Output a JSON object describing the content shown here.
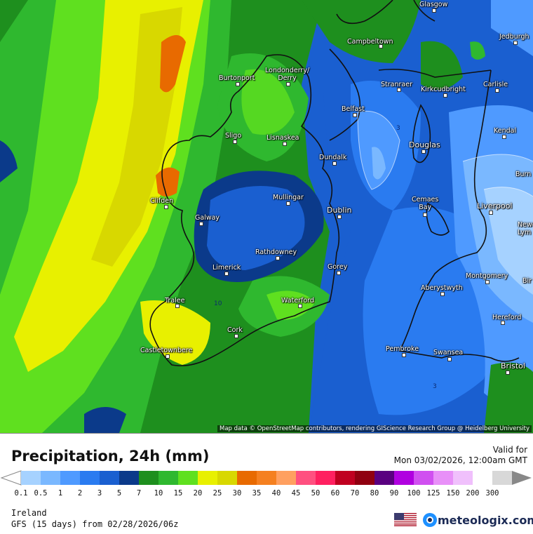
{
  "map": {
    "attribution": "Map data © OpenStreetMap contributors, rendering GIScience Research Group @ Heidelberg University",
    "cities": [
      {
        "name": "Glasgow"
      },
      {
        "name": "Campbeltown"
      },
      {
        "name": "Jedburgh"
      },
      {
        "name": "Burtonport"
      },
      {
        "name": "Londonderry/\nDerry"
      },
      {
        "name": "Stranraer"
      },
      {
        "name": "Kirkcudbright"
      },
      {
        "name": "Carlisle"
      },
      {
        "name": "Belfast"
      },
      {
        "name": "Sligo"
      },
      {
        "name": "Lisnaskea"
      },
      {
        "name": "Kendal"
      },
      {
        "name": "Douglas"
      },
      {
        "name": "Dundalk"
      },
      {
        "name": "Clifden"
      },
      {
        "name": "Mullingar"
      },
      {
        "name": "Cemaes\nBay"
      },
      {
        "name": "Liverpool"
      },
      {
        "name": "Dublin"
      },
      {
        "name": "Galway"
      },
      {
        "name": "Newca\nLym"
      },
      {
        "name": "Burn"
      },
      {
        "name": "Rathdowney"
      },
      {
        "name": "Limerick"
      },
      {
        "name": "Gorey"
      },
      {
        "name": "Montgomery"
      },
      {
        "name": "Bir"
      },
      {
        "name": "Aberystwyth"
      },
      {
        "name": "Tralee"
      },
      {
        "name": "Waterford"
      },
      {
        "name": "Hereford"
      },
      {
        "name": "Cork"
      },
      {
        "name": "Castletownbere"
      },
      {
        "name": "Pembroke"
      },
      {
        "name": "Swansea"
      },
      {
        "name": "Bristol"
      }
    ],
    "contour_labels": [
      "10",
      "3",
      "3"
    ]
  },
  "legend": {
    "title": "Precipitation, 24h (mm)",
    "valid_for_label": "Valid for",
    "valid_date": "Mon 03/02/2026, 12:00am GMT",
    "region": "Ireland",
    "model": "GFS (15 days) from  02/28/2026/06z",
    "brand": "meteologix.com",
    "ticks": [
      "0.1",
      "0.5",
      "1",
      "2",
      "3",
      "5",
      "7",
      "10",
      "15",
      "20",
      "25",
      "30",
      "35",
      "40",
      "45",
      "50",
      "60",
      "70",
      "80",
      "90",
      "100",
      "125",
      "150",
      "200",
      "300"
    ],
    "colors": [
      "#a6d2ff",
      "#7ab8ff",
      "#4f9aff",
      "#2a7bf0",
      "#1a5fd0",
      "#0b3a8a",
      "#1e8f1e",
      "#2fb82f",
      "#5fe01f",
      "#e8f000",
      "#d8d800",
      "#e86a00",
      "#f58020",
      "#ffa060",
      "#ff5080",
      "#ff2060",
      "#c00020",
      "#900010",
      "#5a0080",
      "#b000e0",
      "#d050f0",
      "#e890f8",
      "#f0c0fc",
      "#ffffff",
      "#d8d8d8"
    ]
  }
}
